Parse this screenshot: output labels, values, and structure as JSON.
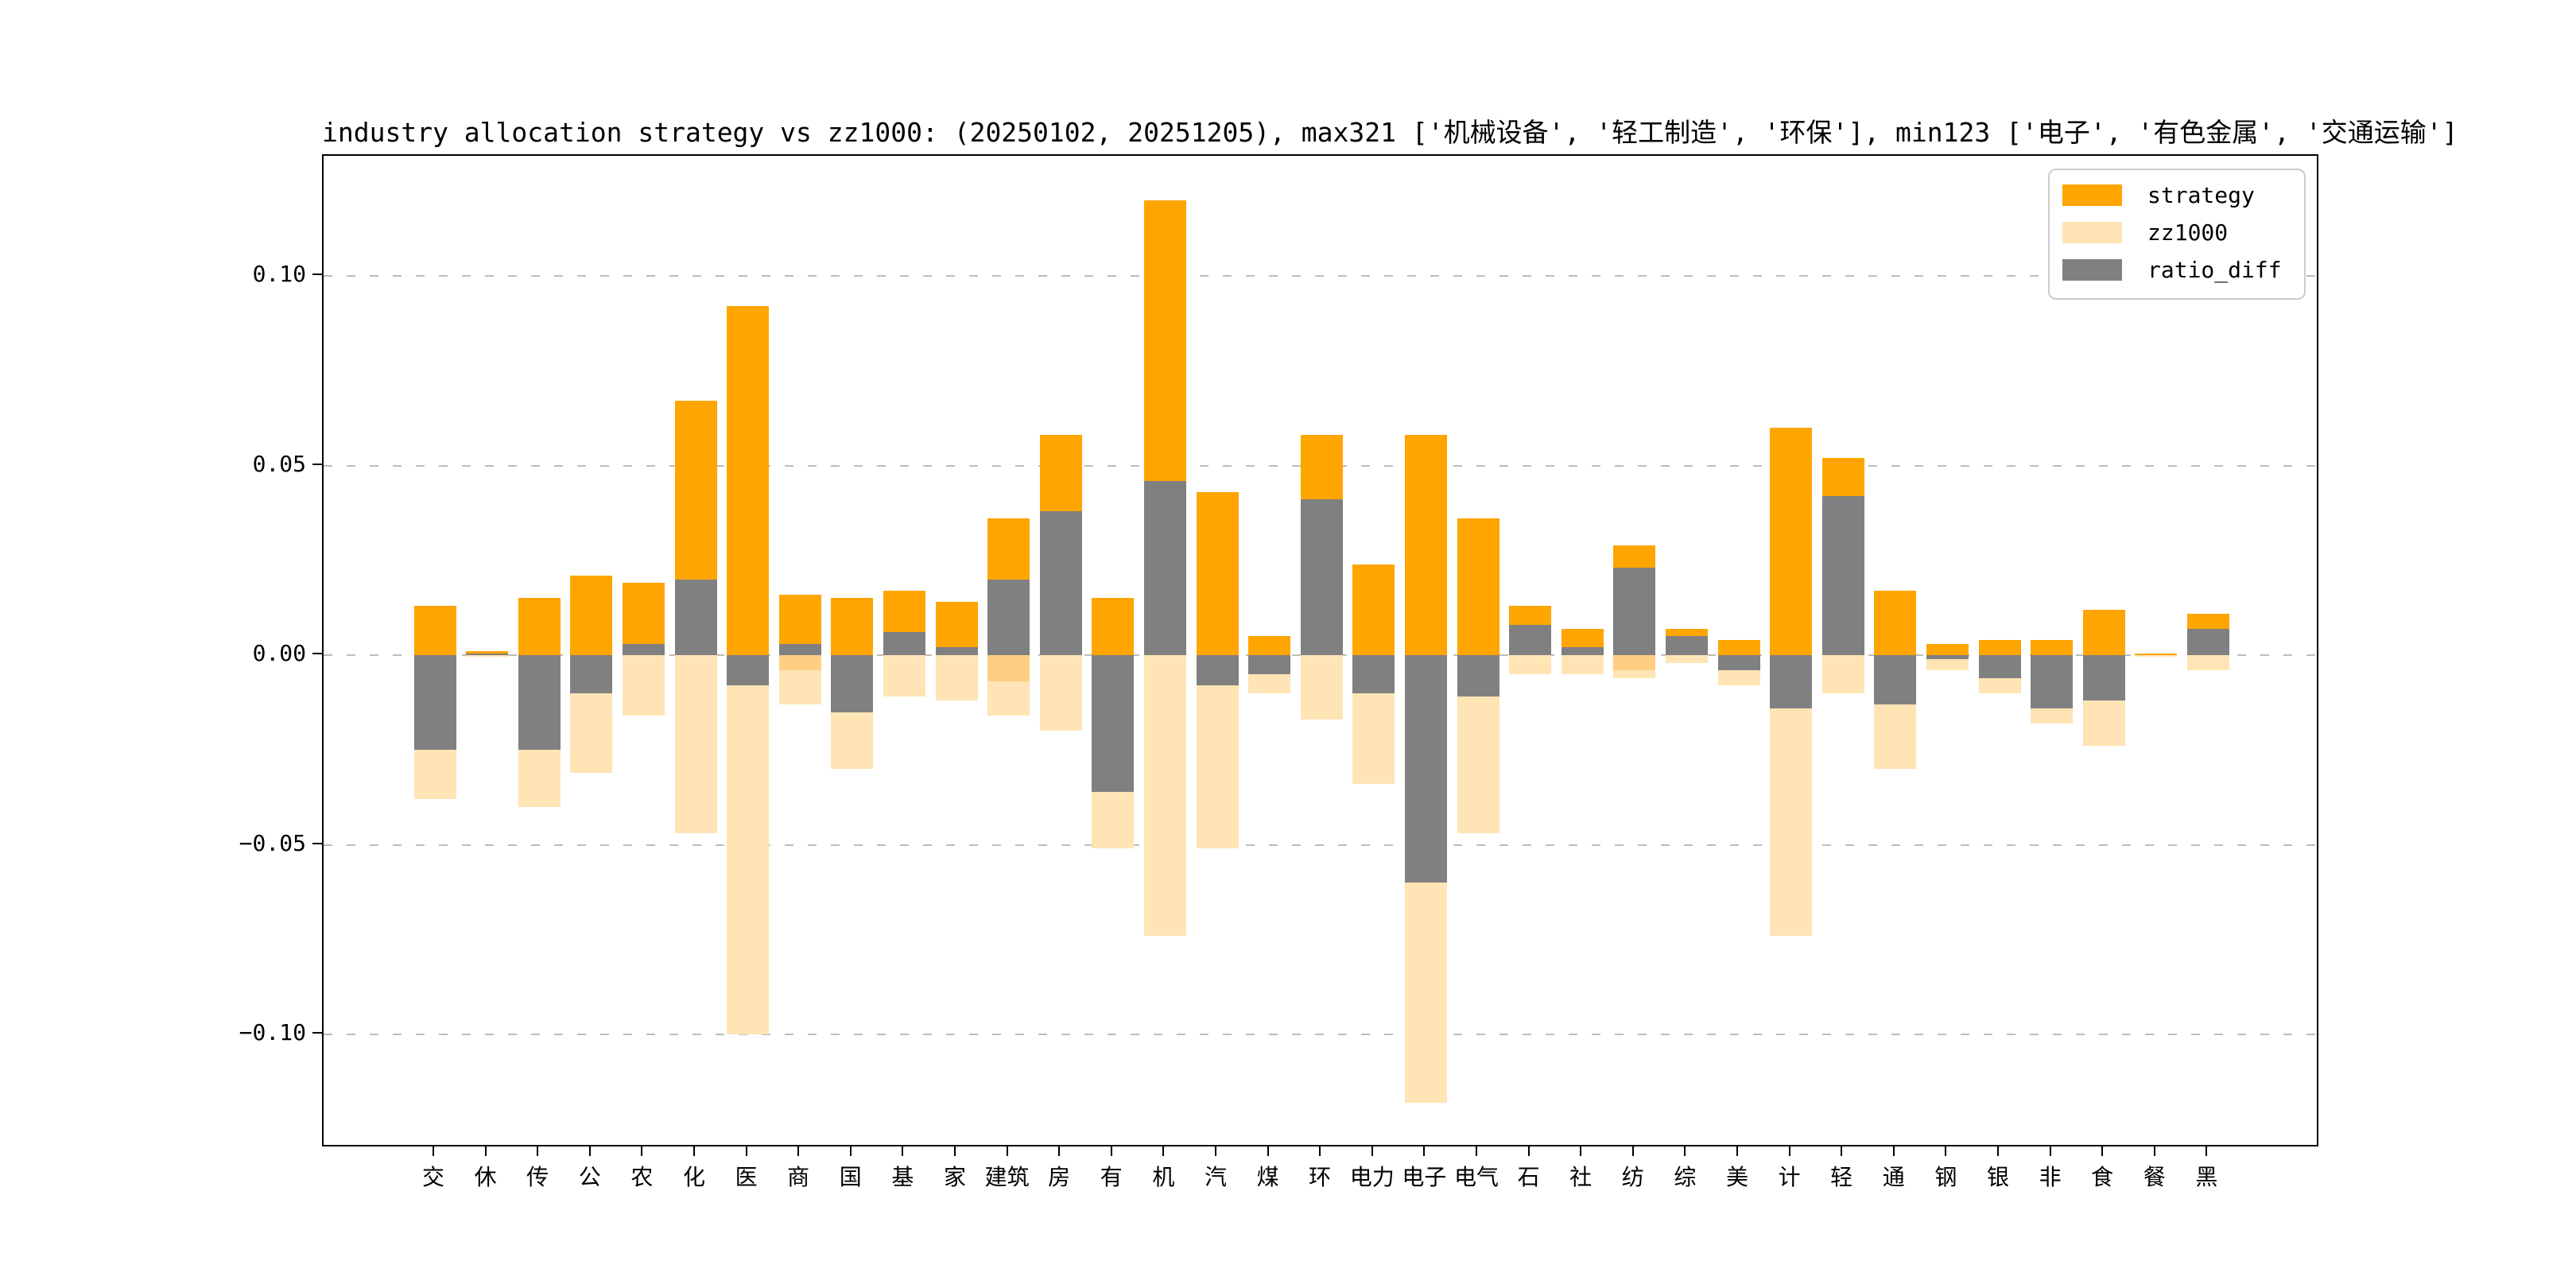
{
  "title": "industry allocation strategy vs zz1000: (20250102, 20251205), max321 ['机械设备', '轻工制造', '环保'], min123 ['电子', '有色金属', '交通运输']",
  "legend": {
    "position": "upper right",
    "items": [
      {
        "label": "strategy",
        "color": "#FFA500"
      },
      {
        "label": "zz1000",
        "color": "#FFE4B5"
      },
      {
        "label": "ratio_diff",
        "color": "#808080"
      }
    ]
  },
  "colors": {
    "strategy": "#FFA500",
    "zz1000": "#FFE4B5",
    "ratio_diff": "#808080",
    "overlap_band": "#FFCE82",
    "gridline": "#bdbdbd",
    "spine": "#000000",
    "background": "#ffffff"
  },
  "y_axis": {
    "tick_labels": [
      "0.10",
      "0.05",
      "0.00",
      "−0.05",
      "−0.10"
    ],
    "tick_values": [
      0.1,
      0.05,
      0.0,
      -0.05,
      -0.1
    ]
  },
  "chart_data": {
    "type": "bar",
    "title": "industry allocation strategy vs zz1000: (20250102, 20251205), max321 ['机械设备', '轻工制造', '环保'], min123 ['电子', '有色金属', '交通运输']",
    "xlabel": "",
    "ylabel": "",
    "ylim": [
      -0.13,
      0.132
    ],
    "grid": true,
    "legend_position": "upper right",
    "categories": [
      "交",
      "休",
      "传",
      "公",
      "农",
      "化",
      "医",
      "商",
      "国",
      "基",
      "家",
      "建筑",
      "房",
      "有",
      "机",
      "汽",
      "煤",
      "环",
      "电力",
      "电子",
      "电气",
      "石",
      "社",
      "纺",
      "综",
      "美",
      "计",
      "轻",
      "通",
      "钢",
      "银",
      "非",
      "食",
      "餐",
      "黑"
    ],
    "series": [
      {
        "name": "strategy",
        "color": "#FFA500",
        "plotted_as": "positive-from-zero",
        "values": [
          0.013,
          0.001,
          0.015,
          0.021,
          0.019,
          0.067,
          0.092,
          0.016,
          0.015,
          0.017,
          0.014,
          0.036,
          0.058,
          0.015,
          0.12,
          0.043,
          0.005,
          0.058,
          0.024,
          0.058,
          0.036,
          0.013,
          0.007,
          0.029,
          0.007,
          0.004,
          0.06,
          0.052,
          0.017,
          0.003,
          0.004,
          0.004,
          0.012,
          0.0005,
          0.011
        ]
      },
      {
        "name": "zz1000",
        "color": "#FFE4B5",
        "plotted_as": "negated-below-zero",
        "values": [
          0.038,
          0.0005,
          0.04,
          0.031,
          0.016,
          0.047,
          0.1,
          0.013,
          0.03,
          0.011,
          0.012,
          0.016,
          0.02,
          0.051,
          0.074,
          0.051,
          0.01,
          0.017,
          0.034,
          0.118,
          0.047,
          0.005,
          0.005,
          0.006,
          0.002,
          0.008,
          0.074,
          0.01,
          0.03,
          0.004,
          0.01,
          0.018,
          0.024,
          0.0005,
          0.004
        ]
      },
      {
        "name": "ratio_diff",
        "color": "#808080",
        "plotted_as": "signed-from-zero",
        "values": [
          -0.025,
          0.0005,
          -0.025,
          -0.01,
          0.003,
          0.02,
          -0.008,
          0.003,
          -0.015,
          0.006,
          0.002,
          0.02,
          0.038,
          -0.036,
          0.046,
          -0.008,
          -0.005,
          0.041,
          -0.01,
          -0.06,
          -0.011,
          0.008,
          0.002,
          0.023,
          0.005,
          -0.004,
          -0.014,
          0.042,
          -0.013,
          -0.001,
          -0.006,
          -0.014,
          -0.012,
          0.0,
          0.007
        ]
      }
    ],
    "overlap_below_zero": [
      0,
      0,
      0,
      0,
      0,
      0,
      0,
      0.004,
      0,
      0,
      0,
      0.007,
      0,
      0,
      0,
      0,
      0,
      0,
      0,
      0,
      0,
      0,
      0,
      0.004,
      0,
      0,
      0,
      0,
      0,
      0,
      0,
      0,
      0,
      0,
      0
    ]
  }
}
